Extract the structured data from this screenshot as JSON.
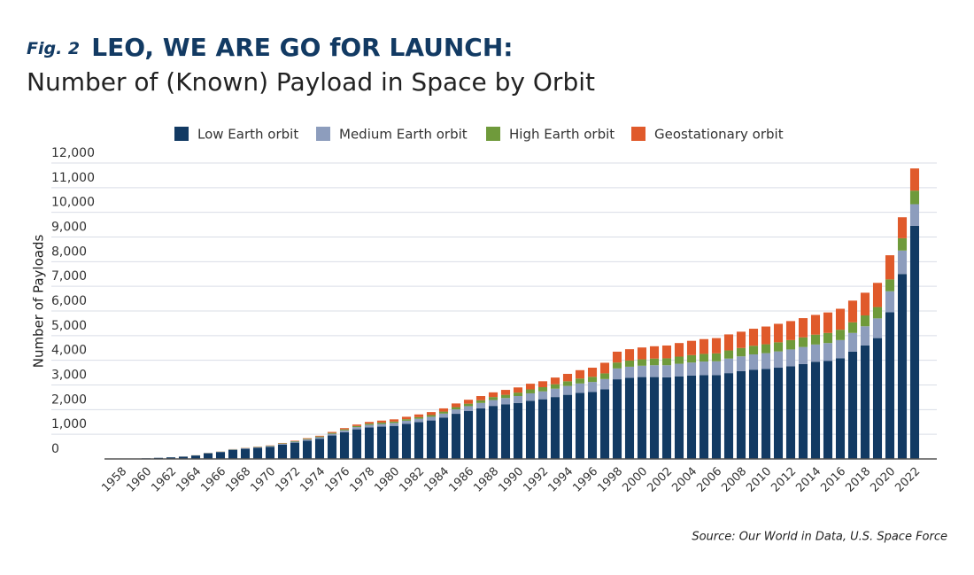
{
  "chart_data": {
    "type": "stacked_bar",
    "figure_label": "Fig. 2",
    "title": "LEO, WE ARE GO fOR LAUNCH:",
    "subtitle": "Number of (Known) Payload in Space by Orbit",
    "y_axis_label": "Number of Payloads",
    "source": "Source: Our World in Data, U.S. Space Force",
    "categories": [
      "1958",
      null,
      "1960",
      null,
      "1962",
      null,
      "1964",
      null,
      "1966",
      null,
      "1968",
      null,
      "1970",
      null,
      "1972",
      null,
      "1974",
      null,
      "1976",
      null,
      "1978",
      null,
      "1980",
      null,
      "1982",
      null,
      "1984",
      null,
      "1986",
      null,
      "1988",
      null,
      "1990",
      null,
      "1992",
      null,
      "1994",
      null,
      "1996",
      null,
      "1998",
      null,
      "2000",
      null,
      "2002",
      null,
      "2004",
      null,
      "2006",
      null,
      "2008",
      null,
      "2010",
      null,
      "2012",
      null,
      "2014",
      null,
      "2016",
      null,
      "2018",
      null,
      "2020",
      null,
      "2022"
    ],
    "series": [
      {
        "name": "Low Earth orbit",
        "color": "#123a63",
        "values": [
          3,
          8,
          25,
          45,
          65,
          90,
          140,
          230,
          280,
          370,
          410,
          450,
          490,
          580,
          660,
          740,
          820,
          950,
          1080,
          1200,
          1280,
          1310,
          1340,
          1420,
          1490,
          1560,
          1680,
          1830,
          1940,
          2050,
          2150,
          2210,
          2270,
          2360,
          2420,
          2510,
          2600,
          2680,
          2720,
          2820,
          3230,
          3290,
          3320,
          3320,
          3310,
          3350,
          3380,
          3400,
          3400,
          3480,
          3560,
          3620,
          3650,
          3700,
          3760,
          3850,
          3940,
          3980,
          4080,
          4350,
          4600,
          4900,
          5950,
          7500,
          9450
        ]
      },
      {
        "name": "Medium Earth orbit",
        "color": "#8d9dbd",
        "values": [
          0,
          0,
          2,
          3,
          3,
          5,
          5,
          8,
          10,
          15,
          20,
          25,
          30,
          35,
          40,
          50,
          60,
          70,
          80,
          90,
          100,
          110,
          120,
          130,
          140,
          150,
          160,
          180,
          200,
          220,
          240,
          260,
          280,
          300,
          320,
          340,
          360,
          380,
          400,
          420,
          440,
          450,
          460,
          480,
          490,
          510,
          530,
          550,
          560,
          590,
          600,
          620,
          640,
          660,
          680,
          690,
          700,
          720,
          740,
          760,
          780,
          800,
          850,
          950,
          880
        ]
      },
      {
        "name": "High Earth orbit",
        "color": "#6f9a3b",
        "values": [
          0,
          0,
          0,
          0,
          1,
          2,
          3,
          5,
          6,
          8,
          10,
          12,
          15,
          18,
          20,
          25,
          30,
          35,
          40,
          45,
          50,
          55,
          55,
          60,
          65,
          70,
          80,
          90,
          100,
          110,
          120,
          130,
          140,
          160,
          170,
          180,
          190,
          200,
          210,
          230,
          240,
          250,
          260,
          270,
          280,
          290,
          300,
          310,
          320,
          330,
          340,
          350,
          360,
          370,
          380,
          390,
          400,
          410,
          420,
          430,
          440,
          460,
          480,
          500,
          550
        ]
      },
      {
        "name": "Geostationary orbit",
        "color": "#e05a2b",
        "values": [
          0,
          0,
          0,
          0,
          0,
          1,
          2,
          3,
          4,
          5,
          8,
          10,
          12,
          15,
          20,
          25,
          30,
          40,
          50,
          60,
          70,
          80,
          90,
          100,
          110,
          120,
          130,
          150,
          160,
          170,
          190,
          200,
          210,
          230,
          240,
          270,
          300,
          340,
          370,
          430,
          440,
          460,
          480,
          500,
          520,
          550,
          580,
          600,
          620,
          650,
          660,
          690,
          720,
          750,
          770,
          780,
          800,
          830,
          850,
          880,
          920,
          980,
          980,
          850,
          900
        ]
      }
    ],
    "ylim": [
      0,
      12000
    ],
    "yticks": [
      0,
      {
        "value": 1000,
        "label": "1,000"
      },
      {
        "value": 2000,
        "label": "2,000"
      },
      {
        "value": 3000,
        "label": "3,000"
      },
      {
        "value": 4000,
        "label": "4,000"
      },
      {
        "value": 5000,
        "label": "5,000"
      },
      {
        "value": 6000,
        "label": "6,000"
      },
      {
        "value": 7000,
        "label": "7,000"
      },
      {
        "value": 8000,
        "label": "8,000"
      },
      {
        "value": 9000,
        "label": "9,000"
      },
      {
        "value": 10000,
        "label": "10,000"
      },
      {
        "value": 11000,
        "label": "11,000"
      },
      {
        "value": 12000,
        "label": "12,000"
      }
    ],
    "grid": true,
    "legend": "top"
  }
}
